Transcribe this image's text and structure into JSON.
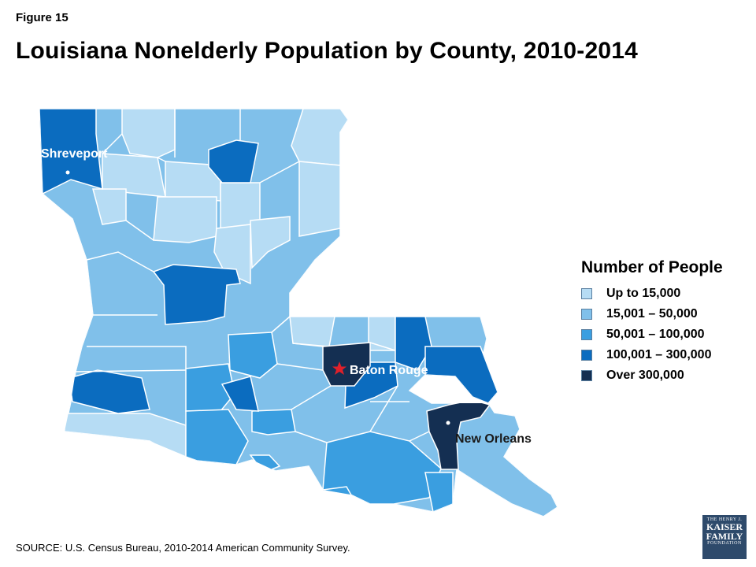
{
  "header": {
    "figure_label": "Figure 15",
    "title": "Louisiana Nonelderly Population by County, 2010-2014"
  },
  "map": {
    "cities": [
      {
        "name": "Shreveport"
      },
      {
        "name": "Baton Rouge"
      },
      {
        "name": "New Orleans"
      }
    ],
    "colors": {
      "tier1": "#b6dcf4",
      "tier2": "#80c0ea",
      "tier3": "#3a9ee0",
      "tier4": "#0b6cbf",
      "tier5": "#142f52",
      "border": "#ffffff",
      "capital_star": "#e0202a"
    }
  },
  "legend": {
    "title": "Number of People",
    "items": [
      {
        "label": "Up to 15,000",
        "color": "#b6dcf4"
      },
      {
        "label": "15,001 – 50,000",
        "color": "#80c0ea"
      },
      {
        "label": "50,001 – 100,000",
        "color": "#3a9ee0"
      },
      {
        "label": "100,001 – 300,000",
        "color": "#0b6cbf"
      },
      {
        "label": "Over 300,000",
        "color": "#142f52"
      }
    ]
  },
  "footer": {
    "source": "SOURCE: U.S. Census Bureau, 2010-2014 American Community Survey."
  },
  "logo": {
    "line1": "THE HENRY J.",
    "line2": "KAISER",
    "line3": "FAMILY",
    "line4": "FOUNDATION"
  }
}
